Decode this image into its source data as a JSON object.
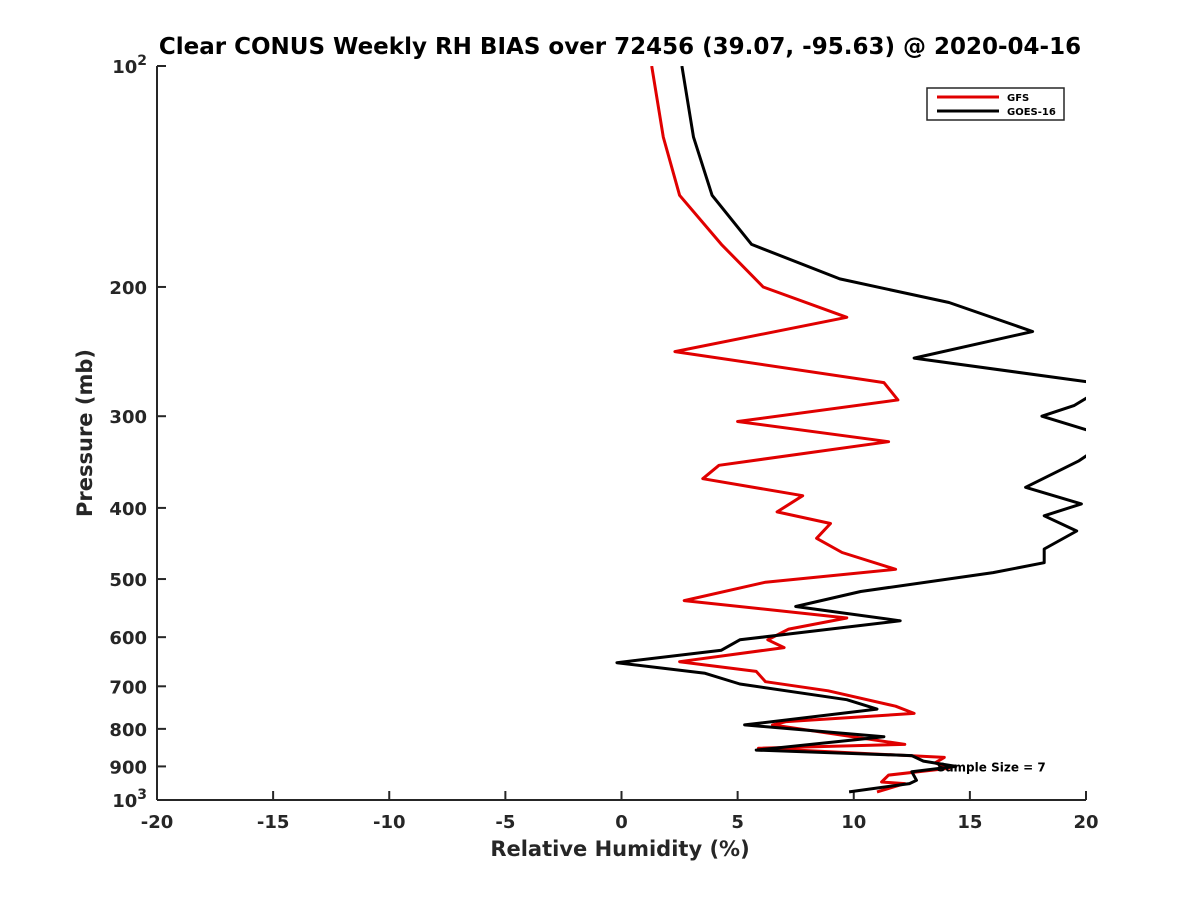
{
  "chart_data": {
    "type": "line",
    "title": "Clear CONUS Weekly RH BIAS over 72456 (39.07, -95.63) @ 2020-04-16",
    "xlabel": "Relative Humidity (%)",
    "ylabel": "Pressure (mb)",
    "xlim": [
      -20,
      20
    ],
    "ylim": [
      100,
      1000
    ],
    "yscale": "log",
    "yreversed": true,
    "grid": false,
    "legend_position": "top-right",
    "x_ticks": [
      -20,
      -15,
      -10,
      -5,
      0,
      5,
      10,
      15,
      20
    ],
    "x_tick_labels": [
      "-20",
      "-15",
      "-10",
      "-5",
      "0",
      "5",
      "10",
      "15",
      "20"
    ],
    "y_ticks": [
      {
        "value": 100,
        "base": "10",
        "exp": "2"
      },
      {
        "value": 200,
        "base": "200",
        "exp": ""
      },
      {
        "value": 300,
        "base": "300",
        "exp": ""
      },
      {
        "value": 400,
        "base": "400",
        "exp": ""
      },
      {
        "value": 500,
        "base": "500",
        "exp": ""
      },
      {
        "value": 600,
        "base": "600",
        "exp": ""
      },
      {
        "value": 700,
        "base": "700",
        "exp": ""
      },
      {
        "value": 800,
        "base": "800",
        "exp": ""
      },
      {
        "value": 900,
        "base": "900",
        "exp": ""
      },
      {
        "value": 1000,
        "base": "10",
        "exp": "3"
      }
    ],
    "annotation": {
      "text": "Sample Size = 7",
      "x": 12.5,
      "y": 900
    },
    "series": [
      {
        "name": "GFS",
        "color": "#e00000",
        "points": [
          [
            1.3,
            100
          ],
          [
            1.8,
            125
          ],
          [
            2.5,
            150
          ],
          [
            4.3,
            175
          ],
          [
            6.1,
            200
          ],
          [
            9.7,
            220
          ],
          [
            2.3,
            245
          ],
          [
            11.3,
            270
          ],
          [
            11.9,
            285
          ],
          [
            5.0,
            305
          ],
          [
            11.5,
            325
          ],
          [
            4.2,
            350
          ],
          [
            3.5,
            365
          ],
          [
            7.8,
            385
          ],
          [
            6.7,
            405
          ],
          [
            9.0,
            420
          ],
          [
            8.4,
            440
          ],
          [
            9.5,
            460
          ],
          [
            11.8,
            485
          ],
          [
            6.2,
            505
          ],
          [
            2.7,
            535
          ],
          [
            9.7,
            565
          ],
          [
            7.2,
            585
          ],
          [
            6.3,
            605
          ],
          [
            7.0,
            620
          ],
          [
            2.5,
            648
          ],
          [
            5.8,
            668
          ],
          [
            6.2,
            690
          ],
          [
            8.9,
            710
          ],
          [
            11.8,
            745
          ],
          [
            12.6,
            762
          ],
          [
            7.1,
            782
          ],
          [
            6.5,
            790
          ],
          [
            12.2,
            840
          ],
          [
            5.9,
            850
          ],
          [
            13.9,
            875
          ],
          [
            13.5,
            890
          ],
          [
            14.1,
            905
          ],
          [
            11.5,
            925
          ],
          [
            11.2,
            945
          ],
          [
            12.2,
            950
          ],
          [
            11.0,
            975
          ]
        ]
      },
      {
        "name": "GOES-16",
        "color": "#000000",
        "points": [
          [
            2.6,
            100
          ],
          [
            3.1,
            125
          ],
          [
            3.9,
            150
          ],
          [
            5.6,
            175
          ],
          [
            9.4,
            195
          ],
          [
            14.1,
            210
          ],
          [
            17.7,
            230
          ],
          [
            12.6,
            250
          ],
          [
            20.3,
            270
          ],
          [
            20.3,
            280
          ],
          [
            19.5,
            290
          ],
          [
            18.1,
            300
          ],
          [
            20.3,
            315
          ],
          [
            20.3,
            335
          ],
          [
            19.7,
            345
          ],
          [
            17.4,
            375
          ],
          [
            19.8,
            395
          ],
          [
            18.2,
            410
          ],
          [
            19.6,
            430
          ],
          [
            18.2,
            455
          ],
          [
            18.2,
            475
          ],
          [
            16.0,
            490
          ],
          [
            10.3,
            520
          ],
          [
            7.5,
            545
          ],
          [
            12.0,
            570
          ],
          [
            5.1,
            605
          ],
          [
            4.3,
            625
          ],
          [
            -0.2,
            650
          ],
          [
            3.6,
            672
          ],
          [
            5.1,
            695
          ],
          [
            9.7,
            730
          ],
          [
            11.0,
            752
          ],
          [
            5.3,
            790
          ],
          [
            11.3,
            820
          ],
          [
            5.8,
            855
          ],
          [
            12.5,
            870
          ],
          [
            13.0,
            885
          ],
          [
            14.4,
            900
          ],
          [
            12.5,
            915
          ],
          [
            12.7,
            940
          ],
          [
            12.4,
            950
          ],
          [
            9.8,
            975
          ]
        ]
      }
    ]
  }
}
